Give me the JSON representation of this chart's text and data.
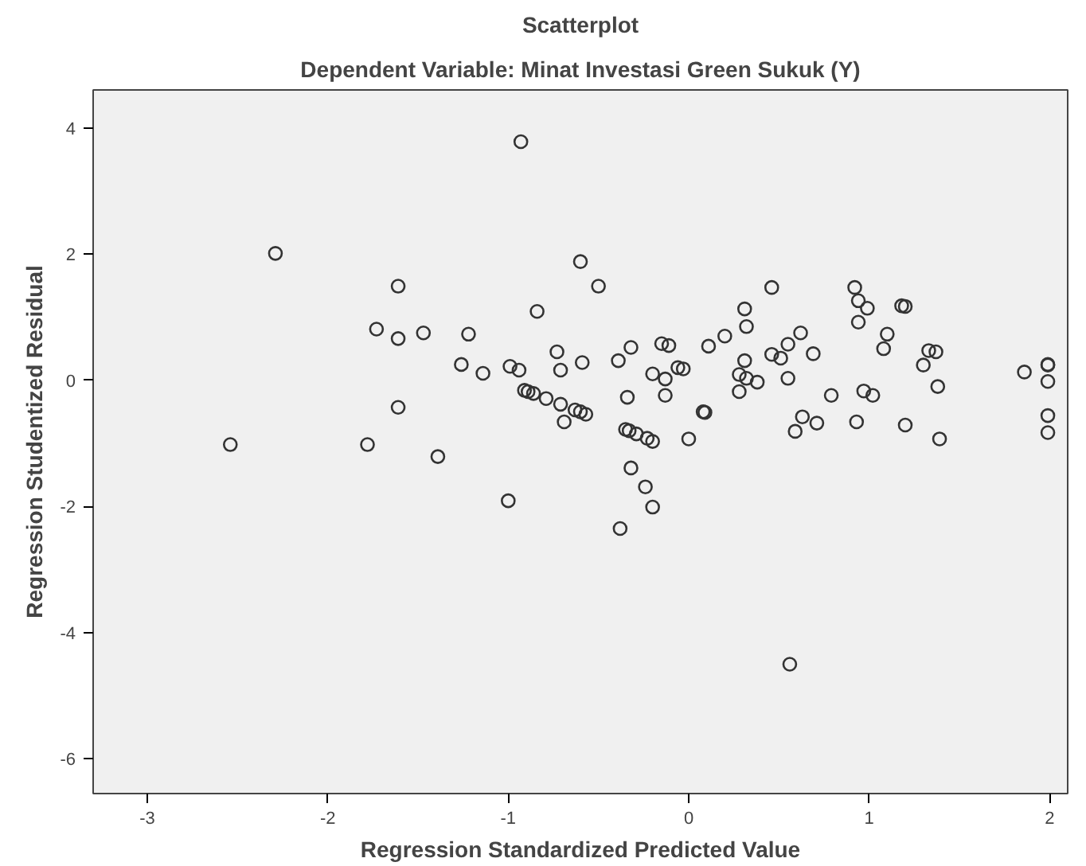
{
  "chart_data": {
    "type": "scatter",
    "title": "Scatterplot",
    "subtitle": "Dependent Variable: Minat Investasi Green Sukuk (Y)",
    "xlabel": "Regression Standardized Predicted Value",
    "ylabel": "Regression Studentized Residual",
    "xlim": [
      -3.3,
      2.1
    ],
    "ylim": [
      -6.55,
      4.6
    ],
    "xticks": [
      -3,
      -2,
      -1,
      0,
      1,
      2
    ],
    "yticks": [
      -6,
      -4,
      -2,
      0,
      2,
      4
    ],
    "grid": false,
    "marker": "circle",
    "series": [
      {
        "color": "#333333",
        "x": [
          -2.29,
          -1.61,
          -1.73,
          -1.61,
          -1.61,
          -2.54,
          -1.78,
          -0.93,
          -0.6,
          -0.5,
          -0.84,
          -1.47,
          -1.22,
          -1.26,
          -1.14,
          -0.73,
          -0.71,
          -0.59,
          -0.39,
          -0.32,
          -0.15,
          -0.11,
          -0.2,
          -0.13,
          -0.06,
          -0.03,
          0.11,
          0.2,
          -0.99,
          -0.94,
          -0.91,
          -0.89,
          -0.86,
          -0.79,
          -0.71,
          -0.69,
          -0.63,
          -0.6,
          -0.57,
          -0.34,
          -0.35,
          -0.33,
          -0.29,
          -0.23,
          -0.2,
          -0.13,
          0.08,
          0.09,
          0.0,
          -0.32,
          -0.24,
          -0.2,
          -0.38,
          -1.0,
          -1.39,
          0.46,
          0.31,
          0.32,
          0.31,
          0.28,
          0.32,
          0.38,
          0.28,
          0.46,
          0.51,
          0.55,
          0.62,
          0.69,
          0.55,
          0.79,
          0.63,
          0.59,
          0.71,
          0.56,
          0.92,
          0.94,
          0.99,
          0.94,
          1.1,
          1.08,
          0.97,
          1.02,
          0.93,
          1.18,
          1.2,
          1.33,
          1.37,
          1.3,
          1.38,
          1.2,
          1.39,
          1.86,
          1.99,
          1.99,
          1.99,
          1.99,
          1.99
        ],
        "values": [
          2.01,
          1.49,
          0.81,
          0.66,
          -0.43,
          -1.02,
          -1.02,
          3.78,
          1.88,
          1.49,
          1.09,
          0.75,
          0.73,
          0.25,
          0.11,
          0.45,
          0.16,
          0.28,
          0.31,
          0.52,
          0.58,
          0.55,
          0.1,
          0.02,
          0.2,
          0.18,
          0.54,
          0.7,
          0.22,
          0.16,
          -0.16,
          -0.18,
          -0.21,
          -0.29,
          -0.38,
          -0.66,
          -0.47,
          -0.5,
          -0.54,
          -0.27,
          -0.78,
          -0.8,
          -0.85,
          -0.92,
          -0.97,
          -0.24,
          -0.5,
          -0.51,
          -0.93,
          -1.39,
          -1.69,
          -2.01,
          -2.35,
          -1.91,
          -1.21,
          1.47,
          1.13,
          0.85,
          0.31,
          0.09,
          0.03,
          -0.03,
          -0.18,
          0.41,
          0.35,
          0.57,
          0.75,
          0.42,
          0.03,
          -0.24,
          -0.58,
          -0.81,
          -0.68,
          -4.5,
          1.47,
          1.26,
          1.14,
          0.92,
          0.73,
          0.5,
          -0.17,
          -0.24,
          -0.66,
          1.18,
          1.17,
          0.47,
          0.45,
          0.24,
          -0.1,
          -0.71,
          -0.93,
          0.13,
          0.24,
          0.25,
          -0.02,
          -0.56,
          -0.83
        ]
      }
    ]
  }
}
